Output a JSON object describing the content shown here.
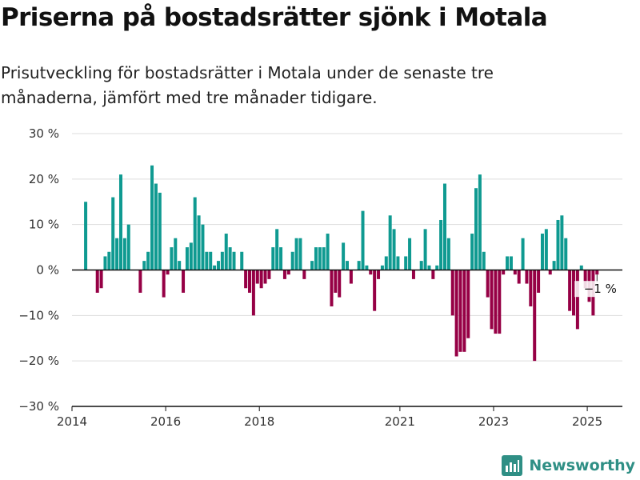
{
  "title": "Priserna på bostadsrätter sjönk i Motala",
  "subtitle": "Prisutveckling för bostadsrätter i Motala under de senaste tre månaderna, jämfört med tre månader tidigare.",
  "brand": "Newsworthy",
  "colors": {
    "positive": "#0f9a91",
    "negative": "#960045",
    "grid": "#dddddd",
    "axis": "#111111",
    "brand": "#2f8f85"
  },
  "chart_data": {
    "type": "bar",
    "ylim": [
      -30,
      30
    ],
    "yticks": [
      30,
      20,
      10,
      0,
      -10,
      -20,
      -30
    ],
    "ytick_labels": [
      "30 %",
      "20 %",
      "10 %",
      "0 %",
      "−10 %",
      "−20 %",
      "−30 %"
    ],
    "xticks": [
      2014,
      2016,
      2018,
      2021,
      2023,
      2025
    ],
    "xtick_labels": [
      "2014",
      "2016",
      "2018",
      "2021",
      "2023",
      "2025"
    ],
    "grid": true,
    "unit": "%",
    "annotation": {
      "text": "−1 %",
      "value": -1
    },
    "x": [
      "2014-04",
      "2014-05",
      "2014-06",
      "2014-07",
      "2014-08",
      "2014-09",
      "2014-10",
      "2014-11",
      "2014-12",
      "2015-01",
      "2015-02",
      "2015-03",
      "2015-04",
      "2015-05",
      "2015-06",
      "2015-07",
      "2015-08",
      "2015-09",
      "2015-10",
      "2015-11",
      "2015-12",
      "2016-01",
      "2016-02",
      "2016-03",
      "2016-04",
      "2016-05",
      "2016-06",
      "2016-07",
      "2016-08",
      "2016-09",
      "2016-10",
      "2016-11",
      "2016-12",
      "2017-01",
      "2017-02",
      "2017-03",
      "2017-04",
      "2017-05",
      "2017-06",
      "2017-07",
      "2017-08",
      "2017-09",
      "2017-10",
      "2017-11",
      "2017-12",
      "2018-01",
      "2018-02",
      "2018-03",
      "2018-04",
      "2018-05",
      "2018-06",
      "2018-07",
      "2018-08",
      "2018-09",
      "2018-10",
      "2018-11",
      "2018-12",
      "2019-01",
      "2019-02",
      "2019-03",
      "2019-04",
      "2019-05",
      "2019-06",
      "2019-07",
      "2019-08",
      "2019-09",
      "2019-10",
      "2019-11",
      "2019-12",
      "2020-01",
      "2020-02",
      "2020-03",
      "2020-04",
      "2020-05",
      "2020-06",
      "2020-07",
      "2020-08",
      "2020-09",
      "2020-10",
      "2020-11",
      "2020-12",
      "2021-01",
      "2021-02",
      "2021-03",
      "2021-04",
      "2021-05",
      "2021-06",
      "2021-07",
      "2021-08",
      "2021-09",
      "2021-10",
      "2021-11",
      "2021-12",
      "2022-01",
      "2022-02",
      "2022-03",
      "2022-04",
      "2022-05",
      "2022-06",
      "2022-07",
      "2022-08",
      "2022-09",
      "2022-10",
      "2022-11",
      "2022-12",
      "2023-01",
      "2023-02",
      "2023-03",
      "2023-04",
      "2023-05",
      "2023-06",
      "2023-07",
      "2023-08",
      "2023-09",
      "2023-10",
      "2023-11",
      "2023-12",
      "2024-01",
      "2024-02",
      "2024-03",
      "2024-04",
      "2024-05",
      "2024-06",
      "2024-07",
      "2024-08",
      "2024-09",
      "2024-10",
      "2024-11",
      "2024-12",
      "2025-01",
      "2025-02",
      "2025-03"
    ],
    "values": [
      15,
      0,
      0,
      -5,
      -4,
      3,
      4,
      16,
      7,
      21,
      7,
      10,
      0,
      0,
      -5,
      2,
      4,
      23,
      19,
      17,
      -6,
      -1,
      5,
      7,
      2,
      -5,
      5,
      6,
      16,
      12,
      10,
      4,
      4,
      1,
      2,
      4,
      8,
      5,
      4,
      0,
      4,
      -4,
      -5,
      -10,
      -3,
      -4,
      -3,
      -2,
      5,
      9,
      5,
      -2,
      -1,
      4,
      7,
      7,
      -2,
      0,
      2,
      5,
      5,
      5,
      8,
      -8,
      -5,
      -6,
      6,
      2,
      -3,
      0,
      2,
      13,
      1,
      -1,
      -9,
      -2,
      1,
      3,
      12,
      9,
      3,
      0,
      3,
      7,
      -2,
      0,
      2,
      9,
      1,
      -2,
      1,
      11,
      19,
      7,
      -10,
      -19,
      -18,
      -18,
      -15,
      8,
      18,
      21,
      4,
      -6,
      -13,
      -14,
      -14,
      -1,
      3,
      3,
      -1,
      -3,
      7,
      -3,
      -8,
      -20,
      -5,
      8,
      9,
      -1,
      2,
      11,
      12,
      7,
      -9,
      -10,
      -13,
      1,
      -4,
      -7,
      -10,
      -1
    ]
  }
}
